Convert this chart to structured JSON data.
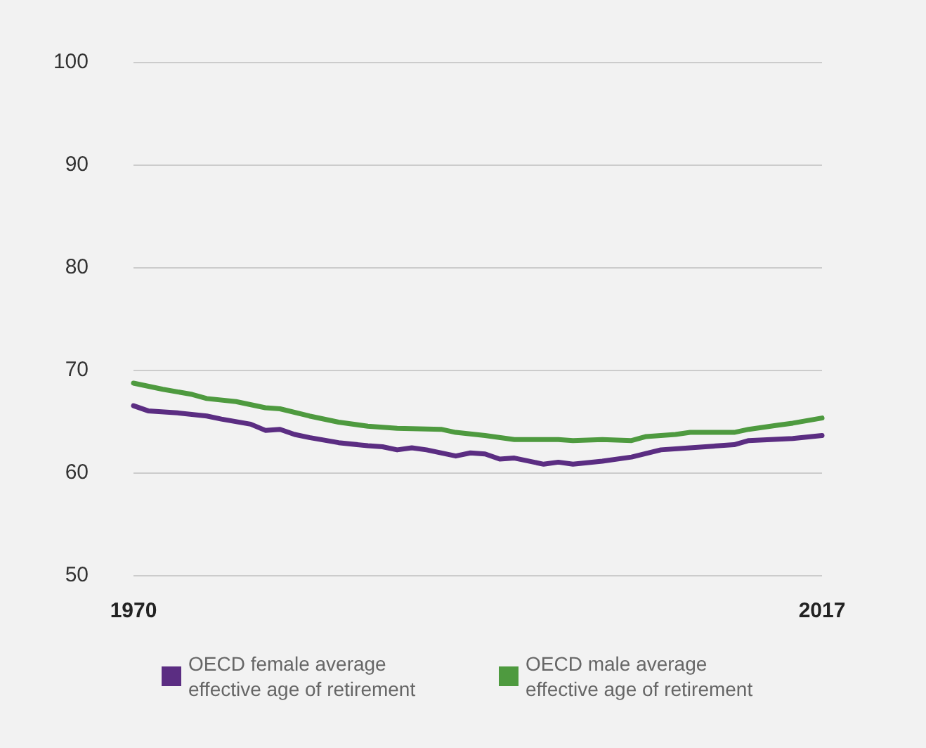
{
  "chart_data": {
    "type": "line",
    "xlim": [
      1970,
      2017
    ],
    "xticks": [
      1970,
      2017
    ],
    "ylim": [
      50,
      100
    ],
    "yticks": [
      50,
      60,
      70,
      80,
      90,
      100
    ],
    "grid": "y",
    "legend": "bottom",
    "marker": "none",
    "line_style": "solid",
    "series": [
      {
        "name": "OECD female average effective age of retirement",
        "color": "#5b2d82",
        "x": [
          1970,
          1971,
          1973,
          1975,
          1976,
          1978,
          1979,
          1980,
          1981,
          1982,
          1984,
          1986,
          1987,
          1988,
          1989,
          1990,
          1992,
          1993,
          1994,
          1995,
          1996,
          1998,
          1999,
          2000,
          2002,
          2004,
          2006,
          2008,
          2011,
          2012,
          2015,
          2017
        ],
        "values": [
          66.5,
          66.0,
          65.8,
          65.5,
          65.2,
          64.7,
          64.1,
          64.2,
          63.7,
          63.4,
          62.9,
          62.6,
          62.5,
          62.2,
          62.4,
          62.2,
          61.6,
          61.9,
          61.8,
          61.3,
          61.4,
          60.8,
          61.0,
          60.8,
          61.1,
          61.5,
          62.2,
          62.4,
          62.7,
          63.1,
          63.3,
          63.6
        ]
      },
      {
        "name": "OECD male average effective age of retirement",
        "color": "#4e9a3f",
        "x": [
          1970,
          1972,
          1974,
          1975,
          1977,
          1979,
          1980,
          1982,
          1984,
          1986,
          1988,
          1991,
          1992,
          1994,
          1996,
          1999,
          2000,
          2002,
          2004,
          2005,
          2007,
          2008,
          2011,
          2012,
          2014,
          2015,
          2017
        ],
        "values": [
          68.7,
          68.1,
          67.6,
          67.2,
          66.9,
          66.3,
          66.2,
          65.5,
          64.9,
          64.5,
          64.3,
          64.2,
          63.9,
          63.6,
          63.2,
          63.2,
          63.1,
          63.2,
          63.1,
          63.5,
          63.7,
          63.9,
          63.9,
          64.2,
          64.6,
          64.8,
          65.3
        ]
      }
    ]
  }
}
